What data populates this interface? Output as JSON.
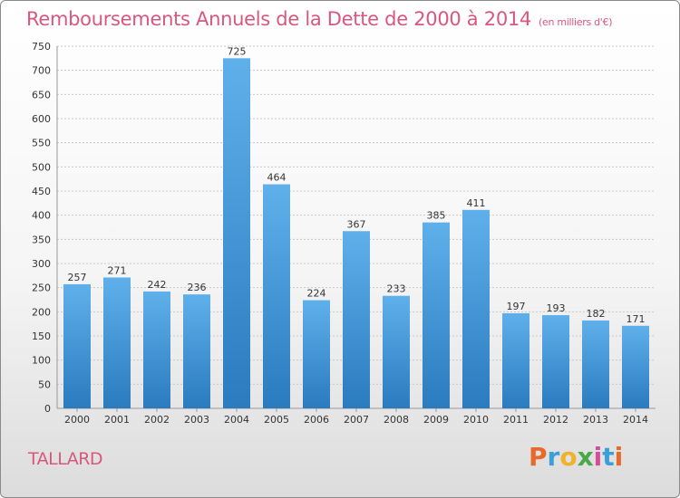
{
  "header": {
    "title": "Remboursements Annuels de la Dette de 2000 à 2014",
    "unit": "(en milliers d'€)"
  },
  "footer": {
    "city": "TALLARD",
    "logo_letters": [
      "P",
      "r",
      "o",
      "x",
      "i",
      "t",
      "i"
    ],
    "logo_colors": [
      "#e8692a",
      "#3aa0d8",
      "#f0b12b",
      "#4aa84a",
      "#d84a9a",
      "#3aa0d8",
      "#e8692a"
    ]
  },
  "colors": {
    "bar_top": "#5fb0ea",
    "bar_bottom": "#2a7bbf",
    "grid": "#c8c8c8",
    "axis_text": "#333333"
  },
  "chart_data": {
    "type": "bar",
    "title": "Remboursements Annuels de la Dette de 2000 à 2014",
    "xlabel": "",
    "ylabel": "",
    "ylim": [
      0,
      750
    ],
    "yticks": [
      0,
      50,
      100,
      150,
      200,
      250,
      300,
      350,
      400,
      450,
      500,
      550,
      600,
      650,
      700,
      750
    ],
    "grid": true,
    "categories": [
      "2000",
      "2001",
      "2002",
      "2003",
      "2004",
      "2005",
      "2006",
      "2007",
      "2008",
      "2009",
      "2010",
      "2011",
      "2012",
      "2013",
      "2014"
    ],
    "values": [
      257,
      271,
      242,
      236,
      725,
      464,
      224,
      367,
      233,
      385,
      411,
      197,
      193,
      182,
      171
    ]
  }
}
